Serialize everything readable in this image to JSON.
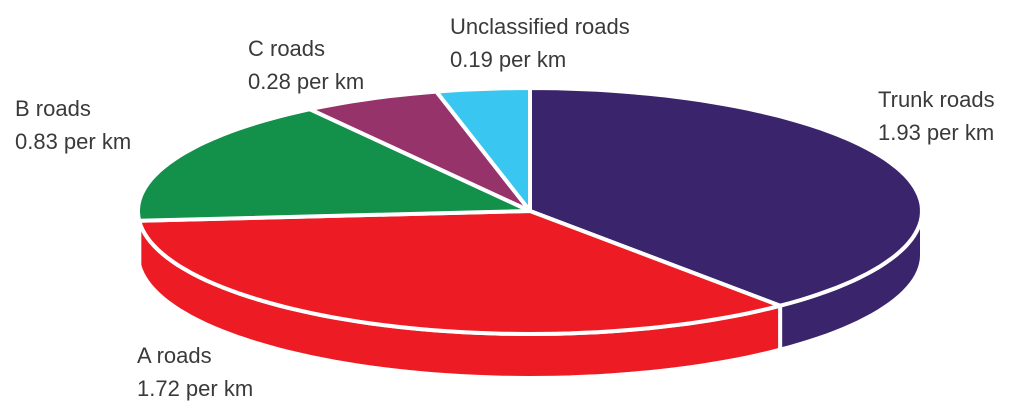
{
  "chart_data": {
    "type": "pie",
    "categories": [
      "Trunk roads",
      "A roads",
      "B roads",
      "C roads",
      "Unclassified roads"
    ],
    "values": [
      1.93,
      1.72,
      0.83,
      0.28,
      0.19
    ],
    "value_labels": [
      "1.93 per km",
      "1.72 per km",
      "0.83 per km",
      "0.28 per km",
      "0.19 per km"
    ],
    "colors": [
      "#3a246c",
      "#ed1c24",
      "#13904a",
      "#97336b",
      "#39c6f0"
    ]
  }
}
